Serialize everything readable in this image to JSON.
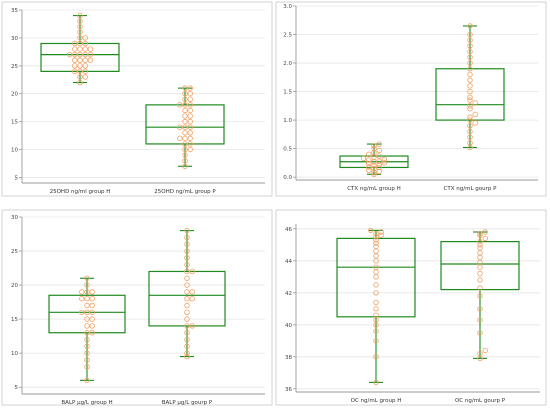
{
  "palette": {
    "box_stroke": "#1e8a1e",
    "point_stroke": "#f0a060",
    "axis": "#9a9a9a",
    "grid": "#e6e6e6",
    "panel_border": "#c8c8c8"
  },
  "chart_data": [
    {
      "type": "box",
      "title": "",
      "xlabel": "",
      "ylabel": "",
      "ylim": [
        4,
        35
      ],
      "yticks": [
        5,
        10,
        15,
        20,
        25,
        30,
        35
      ],
      "grid": true,
      "categories": [
        "25OHD  ng/ml  group  H",
        "25OHD  ng/mL  group  P"
      ],
      "boxes": [
        {
          "min": 22,
          "q1": 24,
          "median": 27,
          "q3": 29,
          "max": 34
        },
        {
          "min": 7,
          "q1": 11,
          "median": 14,
          "q3": 18,
          "max": 21
        }
      ],
      "points": [
        [
          22,
          23,
          23,
          24,
          24,
          24,
          25,
          25,
          25,
          26,
          26,
          26,
          26,
          27,
          27,
          27,
          27,
          27,
          28,
          28,
          28,
          28,
          29,
          29,
          29,
          30,
          30,
          31,
          32,
          33,
          34
        ],
        [
          7,
          8,
          9,
          10,
          10,
          11,
          11,
          12,
          12,
          12,
          13,
          13,
          14,
          14,
          14,
          15,
          15,
          16,
          16,
          17,
          17,
          18,
          18,
          18,
          19,
          19,
          20,
          20,
          21,
          21
        ]
      ]
    },
    {
      "type": "box",
      "title": "",
      "xlabel": "",
      "ylabel": "",
      "ylim": [
        -0.05,
        3.0
      ],
      "yticks": [
        0.0,
        0.5,
        1.0,
        1.5,
        2.0,
        2.5,
        3.0
      ],
      "grid": true,
      "categories": [
        "CTX  ng/mL  group  H",
        "CTX  ng/mL  gourp  P"
      ],
      "boxes": [
        {
          "min": 0.05,
          "q1": 0.17,
          "median": 0.27,
          "q3": 0.37,
          "max": 0.58
        },
        {
          "min": 0.52,
          "q1": 1.0,
          "median": 1.27,
          "q3": 1.9,
          "max": 2.65
        }
      ],
      "points": [
        [
          0.05,
          0.08,
          0.1,
          0.12,
          0.15,
          0.17,
          0.18,
          0.2,
          0.22,
          0.24,
          0.25,
          0.27,
          0.28,
          0.3,
          0.31,
          0.33,
          0.35,
          0.37,
          0.4,
          0.43,
          0.47,
          0.5,
          0.55,
          0.58
        ],
        [
          0.52,
          0.6,
          0.7,
          0.8,
          0.9,
          0.95,
          1.0,
          1.05,
          1.1,
          1.2,
          1.25,
          1.3,
          1.35,
          1.4,
          1.5,
          1.6,
          1.7,
          1.8,
          1.9,
          2.0,
          2.1,
          2.2,
          2.3,
          2.4,
          2.5,
          2.65
        ]
      ]
    },
    {
      "type": "box",
      "title": "",
      "xlabel": "",
      "ylabel": "",
      "ylim": [
        4,
        30
      ],
      "yticks": [
        5,
        10,
        15,
        20,
        25,
        30
      ],
      "grid": true,
      "categories": [
        "BALP  μg/L  group  H",
        "BALP  μg/L  gourp  P"
      ],
      "boxes": [
        {
          "min": 6,
          "q1": 13,
          "median": 16,
          "q3": 18.5,
          "max": 21
        },
        {
          "min": 9.5,
          "q1": 14,
          "median": 18.5,
          "q3": 22,
          "max": 28
        }
      ],
      "points": [
        [
          6,
          8,
          9,
          10,
          11,
          12,
          13,
          13,
          14,
          14,
          15,
          15,
          16,
          16,
          16,
          17,
          17,
          18,
          18,
          18,
          19,
          19,
          19,
          20,
          21
        ],
        [
          9.5,
          10,
          11,
          12,
          13,
          14,
          14,
          15,
          16,
          17,
          18,
          18,
          19,
          19,
          20,
          21,
          22,
          22,
          23,
          24,
          25,
          26,
          27,
          28
        ]
      ]
    },
    {
      "type": "box",
      "title": "",
      "xlabel": "",
      "ylabel": "",
      "ylim": [
        35.8,
        46.3
      ],
      "yticks": [
        36,
        38,
        40,
        42,
        44,
        46
      ],
      "grid": true,
      "categories": [
        "OC  ng/mL  group  H",
        "OC  ng/mL  gourp  P"
      ],
      "boxes": [
        {
          "min": 36.4,
          "q1": 40.5,
          "median": 43.6,
          "q3": 45.4,
          "max": 45.9
        },
        {
          "min": 37.9,
          "q1": 42.2,
          "median": 43.8,
          "q3": 45.2,
          "max": 45.8
        }
      ],
      "points": [
        [
          36.4,
          38.0,
          39.0,
          39.6,
          40.0,
          40.3,
          40.6,
          41.0,
          41.4,
          42.0,
          42.5,
          43.0,
          43.3,
          43.6,
          44.0,
          44.3,
          44.6,
          44.9,
          45.1,
          45.3,
          45.5,
          45.6,
          45.7,
          45.8,
          45.9
        ],
        [
          37.9,
          38.2,
          38.4,
          39.5,
          40.3,
          41.0,
          41.8,
          42.3,
          42.8,
          43.2,
          43.6,
          43.9,
          44.2,
          44.5,
          44.8,
          45.0,
          45.2,
          45.4,
          45.6,
          45.7,
          45.8
        ]
      ]
    }
  ]
}
